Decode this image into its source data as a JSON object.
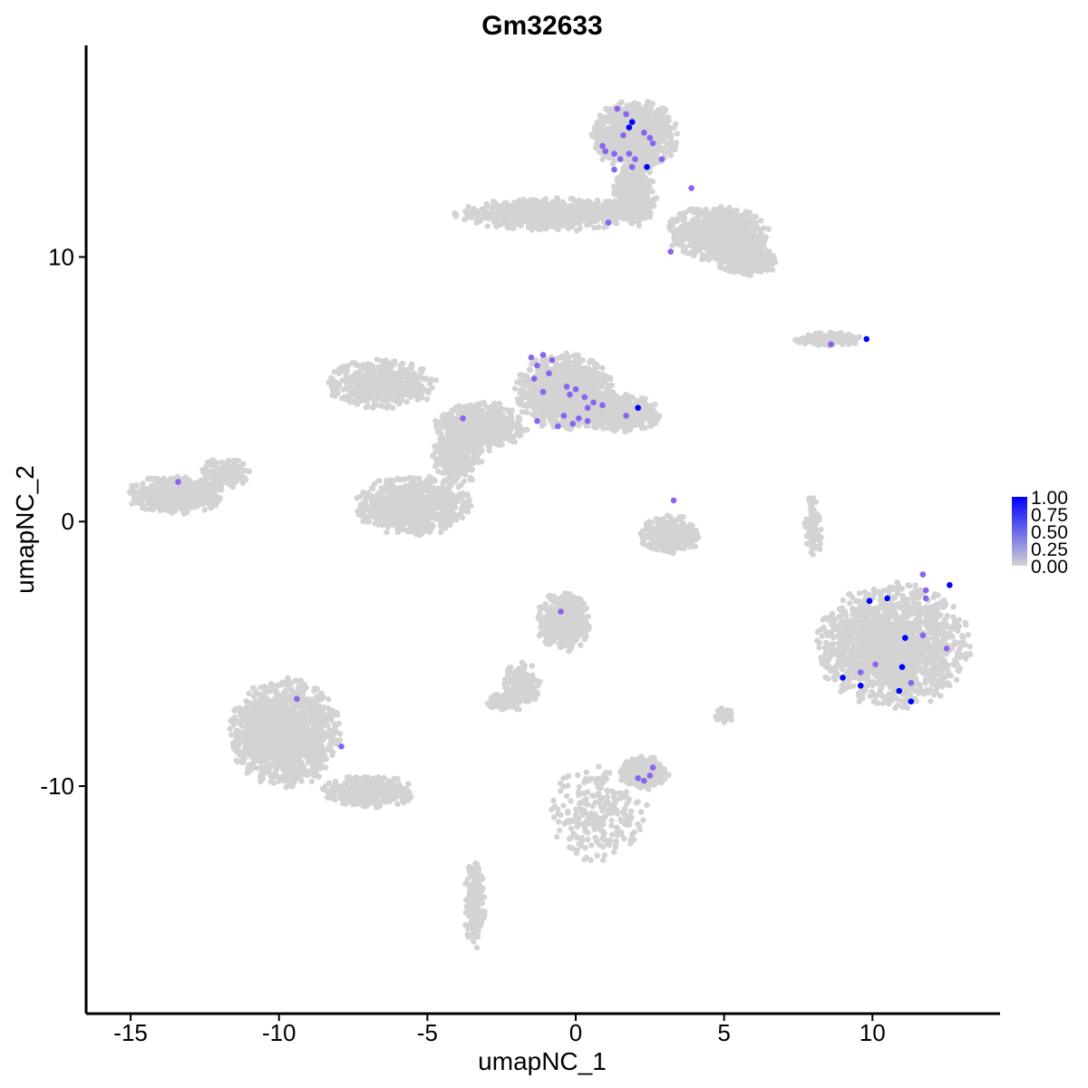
{
  "chart_data": {
    "type": "scatter",
    "title": "Gm32633",
    "xlabel": "umapNC_1",
    "ylabel": "umapNC_2",
    "xlim": [
      -16.5,
      14.3
    ],
    "ylim": [
      -18.6,
      18.0
    ],
    "x_ticks": [
      -15,
      -10,
      -5,
      0,
      5,
      10
    ],
    "x_tick_labels": [
      "-15",
      "-10",
      "-5",
      "0",
      "5",
      "10"
    ],
    "y_ticks": [
      -10,
      0,
      10
    ],
    "y_tick_labels": [
      "-10",
      "0",
      "10"
    ],
    "grid": false,
    "legend": {
      "placement": "right",
      "type": "colorbar",
      "min": 0,
      "max": 1,
      "ticks": [
        1.0,
        0.75,
        0.5,
        0.25,
        0.0
      ],
      "tick_labels": [
        "1.00",
        "0.75",
        "0.50",
        "0.25",
        "0.00"
      ]
    },
    "colors": {
      "low": "#d3d3d3",
      "high": "#0000ff",
      "mid": "#8a63f0"
    },
    "clusters": [
      {
        "name": "top-cluster-head",
        "cx": 2.0,
        "cy": 14.6,
        "rx": 1.4,
        "ry": 1.3,
        "n": 900
      },
      {
        "name": "top-cluster-left-arm",
        "cx": -0.8,
        "cy": 11.6,
        "rx": 3.2,
        "ry": 0.6,
        "n": 700
      },
      {
        "name": "top-cluster-right-arm",
        "cx": 4.8,
        "cy": 10.9,
        "rx": 1.7,
        "ry": 1.0,
        "n": 700
      },
      {
        "name": "top-cluster-far-right",
        "cx": 5.8,
        "cy": 9.9,
        "rx": 1.0,
        "ry": 0.6,
        "n": 300
      },
      {
        "name": "top-cluster-stem",
        "cx": 2.0,
        "cy": 12.4,
        "rx": 0.7,
        "ry": 1.2,
        "n": 350
      },
      {
        "name": "small-island-right-mid",
        "cx": 8.5,
        "cy": 6.9,
        "rx": 1.2,
        "ry": 0.25,
        "n": 160
      },
      {
        "name": "center-cluster-head",
        "cx": -0.4,
        "cy": 4.9,
        "rx": 1.6,
        "ry": 1.4,
        "n": 900
      },
      {
        "name": "center-cluster-arm",
        "cx": 1.4,
        "cy": 4.1,
        "rx": 1.5,
        "ry": 0.7,
        "n": 500
      },
      {
        "name": "center-cluster-upper-left",
        "cx": -6.5,
        "cy": 5.2,
        "rx": 1.8,
        "ry": 0.9,
        "n": 500
      },
      {
        "name": "center-cluster-middle",
        "cx": -3.2,
        "cy": 3.6,
        "rx": 1.5,
        "ry": 0.9,
        "n": 500
      },
      {
        "name": "center-cluster-bottom-loop",
        "cx": -5.5,
        "cy": 0.6,
        "rx": 1.9,
        "ry": 1.1,
        "n": 800
      },
      {
        "name": "center-cluster-neck",
        "cx": -4.0,
        "cy": 2.4,
        "rx": 0.8,
        "ry": 1.0,
        "n": 300
      },
      {
        "name": "left-cluster",
        "cx": -13.5,
        "cy": 1.0,
        "rx": 1.6,
        "ry": 0.7,
        "n": 500
      },
      {
        "name": "left-cluster-tail",
        "cx": -11.8,
        "cy": 1.8,
        "rx": 0.8,
        "ry": 0.6,
        "n": 150
      },
      {
        "name": "small-cluster-center-right",
        "cx": 3.2,
        "cy": -0.5,
        "rx": 1.0,
        "ry": 0.7,
        "n": 300
      },
      {
        "name": "right-big-cluster",
        "cx": 10.7,
        "cy": -4.7,
        "rx": 2.5,
        "ry": 2.3,
        "n": 1600
      },
      {
        "name": "right-thin-arc",
        "cx": 8.0,
        "cy": -0.2,
        "rx": 0.3,
        "ry": 1.2,
        "n": 80
      },
      {
        "name": "center-lower-cluster",
        "cx": -0.4,
        "cy": -3.8,
        "rx": 0.9,
        "ry": 1.1,
        "n": 400
      },
      {
        "name": "center-lower-tail",
        "cx": -1.8,
        "cy": -6.2,
        "rx": 0.6,
        "ry": 0.9,
        "n": 150
      },
      {
        "name": "center-lower-blob",
        "cx": -2.5,
        "cy": -6.8,
        "rx": 0.5,
        "ry": 0.3,
        "n": 100
      },
      {
        "name": "small-cluster-lower-right",
        "cx": 2.3,
        "cy": -9.5,
        "rx": 0.8,
        "ry": 0.6,
        "n": 250
      },
      {
        "name": "lower-left-cluster",
        "cx": -9.8,
        "cy": -8.0,
        "rx": 1.8,
        "ry": 2.0,
        "n": 1400
      },
      {
        "name": "lower-left-tail",
        "cx": -7.0,
        "cy": -10.2,
        "rx": 1.6,
        "ry": 0.6,
        "n": 350
      },
      {
        "name": "lower-left-stem",
        "cx": -3.4,
        "cy": -14.5,
        "rx": 0.35,
        "ry": 1.6,
        "n": 200
      },
      {
        "name": "lower-center-thread",
        "cx": 0.8,
        "cy": -11.0,
        "rx": 1.6,
        "ry": 1.8,
        "n": 250
      },
      {
        "name": "small-blob-right",
        "cx": 5.0,
        "cy": -7.3,
        "rx": 0.3,
        "ry": 0.3,
        "n": 40
      }
    ],
    "expressing_cells": [
      {
        "x": 1.4,
        "y": 15.6,
        "value": 0.55
      },
      {
        "x": 1.7,
        "y": 15.4,
        "value": 0.6
      },
      {
        "x": 1.9,
        "y": 15.1,
        "value": 1.0
      },
      {
        "x": 1.8,
        "y": 14.9,
        "value": 0.95
      },
      {
        "x": 1.6,
        "y": 14.6,
        "value": 0.6
      },
      {
        "x": 2.3,
        "y": 14.7,
        "value": 0.55
      },
      {
        "x": 2.5,
        "y": 14.5,
        "value": 0.6
      },
      {
        "x": 2.6,
        "y": 14.3,
        "value": 0.55
      },
      {
        "x": 0.9,
        "y": 14.2,
        "value": 0.6
      },
      {
        "x": 1.0,
        "y": 14.0,
        "value": 0.55
      },
      {
        "x": 1.3,
        "y": 13.9,
        "value": 0.6
      },
      {
        "x": 1.5,
        "y": 13.7,
        "value": 0.55
      },
      {
        "x": 1.8,
        "y": 13.9,
        "value": 0.6
      },
      {
        "x": 2.0,
        "y": 13.7,
        "value": 0.6
      },
      {
        "x": 2.4,
        "y": 13.4,
        "value": 1.0
      },
      {
        "x": 2.9,
        "y": 13.7,
        "value": 0.55
      },
      {
        "x": 1.3,
        "y": 13.3,
        "value": 0.6
      },
      {
        "x": 1.9,
        "y": 13.4,
        "value": 0.55
      },
      {
        "x": 3.9,
        "y": 12.6,
        "value": 0.55
      },
      {
        "x": 1.1,
        "y": 11.3,
        "value": 0.6
      },
      {
        "x": 3.2,
        "y": 10.2,
        "value": 0.55
      },
      {
        "x": 9.8,
        "y": 6.9,
        "value": 1.0
      },
      {
        "x": 8.6,
        "y": 6.7,
        "value": 0.55
      },
      {
        "x": -1.5,
        "y": 6.2,
        "value": 0.6
      },
      {
        "x": -1.1,
        "y": 6.3,
        "value": 0.55
      },
      {
        "x": -0.8,
        "y": 6.1,
        "value": 0.6
      },
      {
        "x": -1.3,
        "y": 5.9,
        "value": 0.55
      },
      {
        "x": -0.9,
        "y": 5.6,
        "value": 0.6
      },
      {
        "x": -1.4,
        "y": 5.4,
        "value": 0.55
      },
      {
        "x": -0.3,
        "y": 5.1,
        "value": 0.6
      },
      {
        "x": 0.0,
        "y": 5.0,
        "value": 0.55
      },
      {
        "x": -1.1,
        "y": 4.9,
        "value": 0.6
      },
      {
        "x": -0.2,
        "y": 4.8,
        "value": 0.55
      },
      {
        "x": 0.3,
        "y": 4.7,
        "value": 0.6
      },
      {
        "x": 0.6,
        "y": 4.5,
        "value": 0.55
      },
      {
        "x": 0.9,
        "y": 4.4,
        "value": 0.6
      },
      {
        "x": 0.4,
        "y": 4.3,
        "value": 0.55
      },
      {
        "x": 2.1,
        "y": 4.3,
        "value": 1.0
      },
      {
        "x": 1.7,
        "y": 4.0,
        "value": 0.6
      },
      {
        "x": -0.4,
        "y": 4.0,
        "value": 0.55
      },
      {
        "x": 0.1,
        "y": 3.9,
        "value": 0.6
      },
      {
        "x": 0.4,
        "y": 3.8,
        "value": 0.55
      },
      {
        "x": -1.3,
        "y": 3.8,
        "value": 0.6
      },
      {
        "x": -0.1,
        "y": 3.7,
        "value": 0.55
      },
      {
        "x": -0.6,
        "y": 3.6,
        "value": 0.6
      },
      {
        "x": -3.8,
        "y": 3.9,
        "value": 0.55
      },
      {
        "x": -13.4,
        "y": 1.5,
        "value": 0.55
      },
      {
        "x": 3.3,
        "y": 0.8,
        "value": 0.6
      },
      {
        "x": 11.7,
        "y": -2.0,
        "value": 0.55
      },
      {
        "x": 12.6,
        "y": -2.4,
        "value": 1.0
      },
      {
        "x": 11.8,
        "y": -2.6,
        "value": 0.55
      },
      {
        "x": 11.8,
        "y": -2.9,
        "value": 0.6
      },
      {
        "x": 10.5,
        "y": -2.9,
        "value": 1.0
      },
      {
        "x": 9.9,
        "y": -3.0,
        "value": 1.0
      },
      {
        "x": 11.7,
        "y": -4.3,
        "value": 0.55
      },
      {
        "x": 11.1,
        "y": -4.4,
        "value": 1.0
      },
      {
        "x": 12.5,
        "y": -4.8,
        "value": 0.6
      },
      {
        "x": 10.1,
        "y": -5.4,
        "value": 0.55
      },
      {
        "x": 11.0,
        "y": -5.5,
        "value": 1.0
      },
      {
        "x": 9.6,
        "y": -5.7,
        "value": 0.55
      },
      {
        "x": 9.0,
        "y": -5.9,
        "value": 1.0
      },
      {
        "x": 9.6,
        "y": -6.2,
        "value": 1.0
      },
      {
        "x": 11.3,
        "y": -6.1,
        "value": 0.55
      },
      {
        "x": 10.9,
        "y": -6.4,
        "value": 1.0
      },
      {
        "x": 11.3,
        "y": -6.8,
        "value": 1.0
      },
      {
        "x": -0.5,
        "y": -3.4,
        "value": 0.6
      },
      {
        "x": -9.4,
        "y": -6.7,
        "value": 0.55
      },
      {
        "x": -7.9,
        "y": -8.5,
        "value": 0.55
      },
      {
        "x": 2.6,
        "y": -9.3,
        "value": 0.55
      },
      {
        "x": 2.5,
        "y": -9.6,
        "value": 0.6
      },
      {
        "x": 2.3,
        "y": -9.8,
        "value": 0.55
      },
      {
        "x": 2.1,
        "y": -9.7,
        "value": 0.6
      }
    ]
  }
}
